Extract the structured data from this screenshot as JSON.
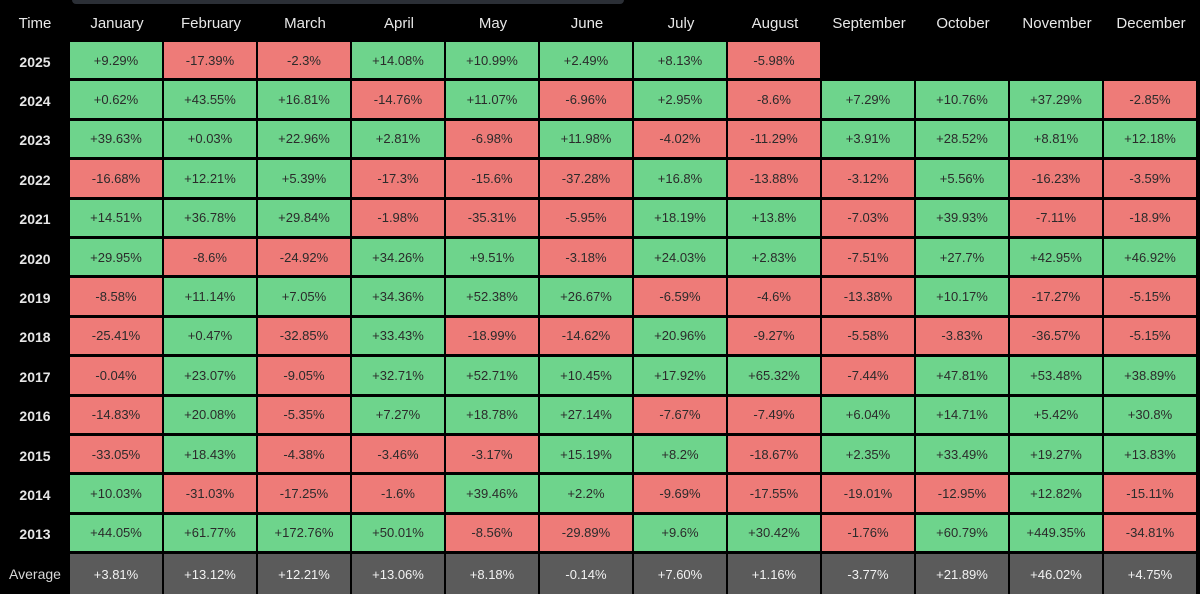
{
  "chart_data": {
    "type": "table",
    "corner_label": "Time",
    "columns": [
      "January",
      "February",
      "March",
      "April",
      "May",
      "June",
      "July",
      "August",
      "September",
      "October",
      "November",
      "December"
    ],
    "rows": [
      {
        "year": "2025",
        "values": [
          "+9.29%",
          "-17.39%",
          "-2.3%",
          "+14.08%",
          "+10.99%",
          "+2.49%",
          "+8.13%",
          "-5.98%",
          "",
          "",
          "",
          ""
        ]
      },
      {
        "year": "2024",
        "values": [
          "+0.62%",
          "+43.55%",
          "+16.81%",
          "-14.76%",
          "+11.07%",
          "-6.96%",
          "+2.95%",
          "-8.6%",
          "+7.29%",
          "+10.76%",
          "+37.29%",
          "-2.85%"
        ]
      },
      {
        "year": "2023",
        "values": [
          "+39.63%",
          "+0.03%",
          "+22.96%",
          "+2.81%",
          "-6.98%",
          "+11.98%",
          "-4.02%",
          "-11.29%",
          "+3.91%",
          "+28.52%",
          "+8.81%",
          "+12.18%"
        ]
      },
      {
        "year": "2022",
        "values": [
          "-16.68%",
          "+12.21%",
          "+5.39%",
          "-17.3%",
          "-15.6%",
          "-37.28%",
          "+16.8%",
          "-13.88%",
          "-3.12%",
          "+5.56%",
          "-16.23%",
          "-3.59%"
        ]
      },
      {
        "year": "2021",
        "values": [
          "+14.51%",
          "+36.78%",
          "+29.84%",
          "-1.98%",
          "-35.31%",
          "-5.95%",
          "+18.19%",
          "+13.8%",
          "-7.03%",
          "+39.93%",
          "-7.11%",
          "-18.9%"
        ]
      },
      {
        "year": "2020",
        "values": [
          "+29.95%",
          "-8.6%",
          "-24.92%",
          "+34.26%",
          "+9.51%",
          "-3.18%",
          "+24.03%",
          "+2.83%",
          "-7.51%",
          "+27.7%",
          "+42.95%",
          "+46.92%"
        ]
      },
      {
        "year": "2019",
        "values": [
          "-8.58%",
          "+11.14%",
          "+7.05%",
          "+34.36%",
          "+52.38%",
          "+26.67%",
          "-6.59%",
          "-4.6%",
          "-13.38%",
          "+10.17%",
          "-17.27%",
          "-5.15%"
        ]
      },
      {
        "year": "2018",
        "values": [
          "-25.41%",
          "+0.47%",
          "-32.85%",
          "+33.43%",
          "-18.99%",
          "-14.62%",
          "+20.96%",
          "-9.27%",
          "-5.58%",
          "-3.83%",
          "-36.57%",
          "-5.15%"
        ]
      },
      {
        "year": "2017",
        "values": [
          "-0.04%",
          "+23.07%",
          "-9.05%",
          "+32.71%",
          "+52.71%",
          "+10.45%",
          "+17.92%",
          "+65.32%",
          "-7.44%",
          "+47.81%",
          "+53.48%",
          "+38.89%"
        ]
      },
      {
        "year": "2016",
        "values": [
          "-14.83%",
          "+20.08%",
          "-5.35%",
          "+7.27%",
          "+18.78%",
          "+27.14%",
          "-7.67%",
          "-7.49%",
          "+6.04%",
          "+14.71%",
          "+5.42%",
          "+30.8%"
        ]
      },
      {
        "year": "2015",
        "values": [
          "-33.05%",
          "+18.43%",
          "-4.38%",
          "-3.46%",
          "-3.17%",
          "+15.19%",
          "+8.2%",
          "-18.67%",
          "+2.35%",
          "+33.49%",
          "+19.27%",
          "+13.83%"
        ]
      },
      {
        "year": "2014",
        "values": [
          "+10.03%",
          "-31.03%",
          "-17.25%",
          "-1.6%",
          "+39.46%",
          "+2.2%",
          "-9.69%",
          "-17.55%",
          "-19.01%",
          "-12.95%",
          "+12.82%",
          "-15.11%"
        ]
      },
      {
        "year": "2013",
        "values": [
          "+44.05%",
          "+61.77%",
          "+172.76%",
          "+50.01%",
          "-8.56%",
          "-29.89%",
          "+9.6%",
          "+30.42%",
          "-1.76%",
          "+60.79%",
          "+449.35%",
          "-34.81%"
        ]
      }
    ],
    "average": {
      "label": "Average",
      "values": [
        "+3.81%",
        "+13.12%",
        "+12.21%",
        "+13.06%",
        "+8.18%",
        "-0.14%",
        "+7.60%",
        "+1.16%",
        "-3.77%",
        "+21.89%",
        "+46.02%",
        "+4.75%"
      ]
    },
    "colors": {
      "positive": "#6ed48c",
      "negative": "#ee7b78",
      "average": "#5b5b5b",
      "background": "#000000"
    }
  }
}
